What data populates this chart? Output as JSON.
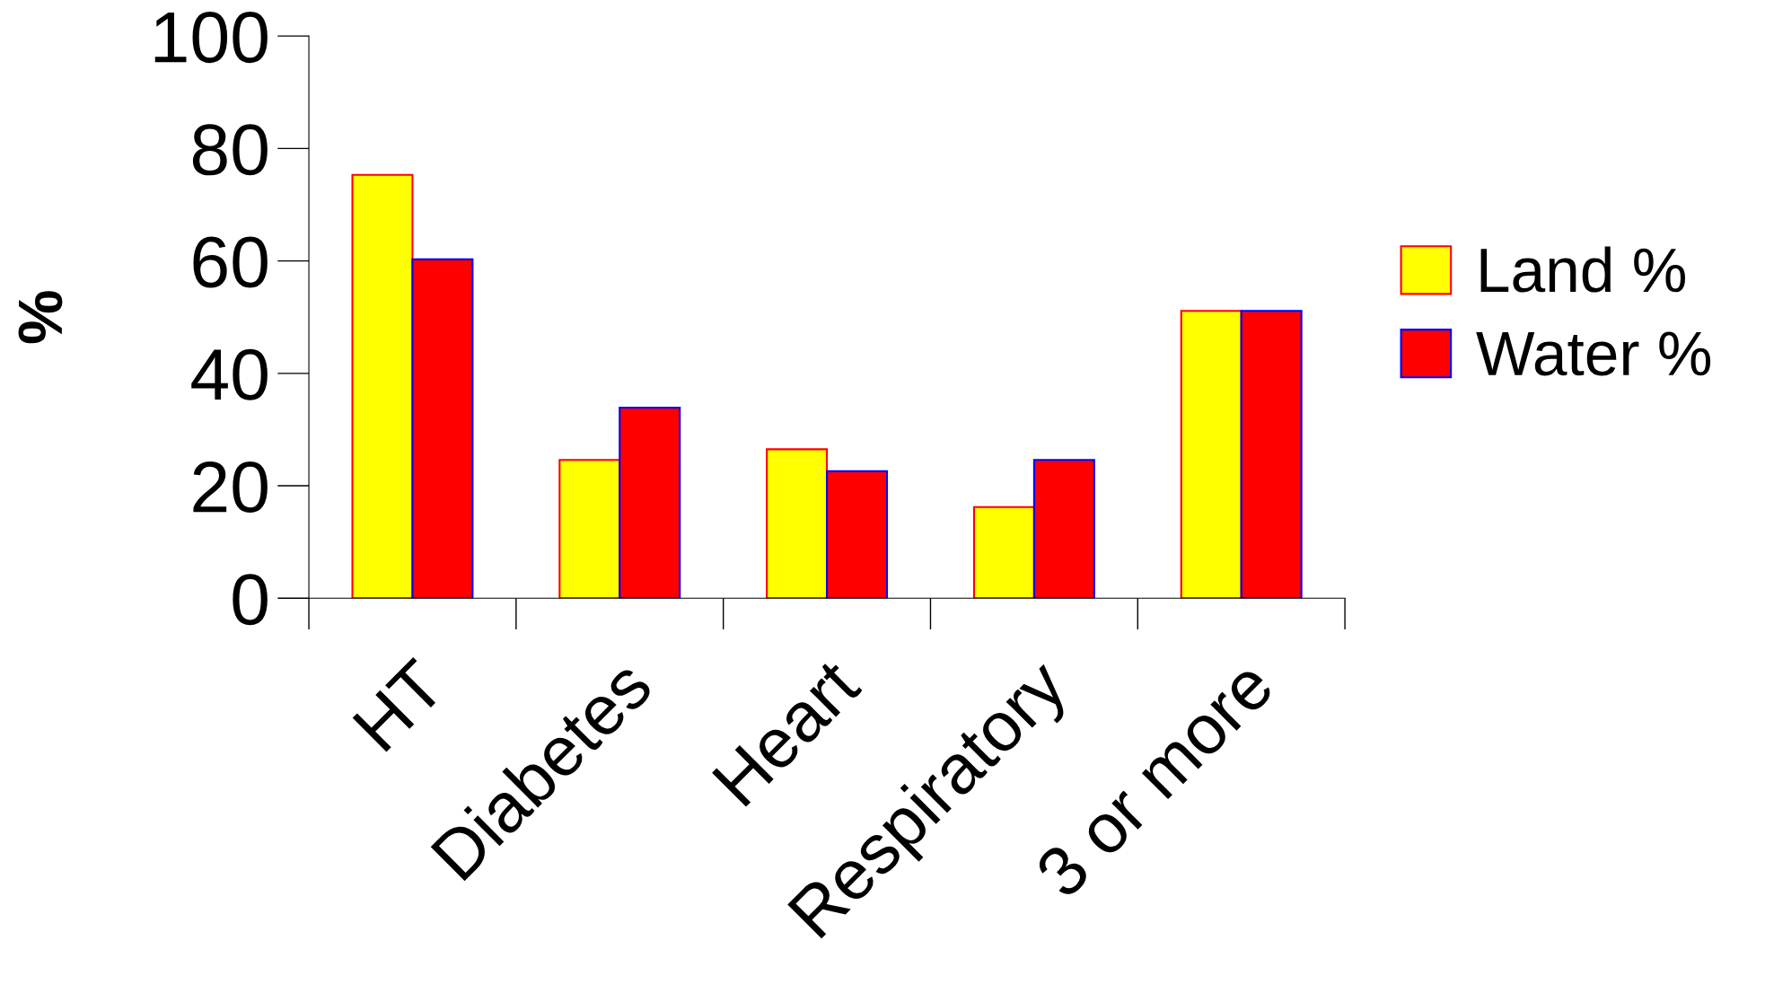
{
  "chart_data": {
    "type": "bar",
    "ylabel": "%",
    "categories": [
      "HT",
      "Diabetes",
      "Heart",
      "Respiratory",
      "3 or more"
    ],
    "series": [
      {
        "name": "Land %",
        "color": "#ffff00",
        "values": [
          75.3,
          24.6,
          26.5,
          16.2,
          51.1
        ]
      },
      {
        "name": "Water %",
        "color": "#ff0000",
        "values": [
          60.3,
          33.9,
          22.6,
          24.6,
          51.1
        ]
      }
    ],
    "ylim": [
      0,
      100
    ],
    "yticks": [
      0,
      20,
      40,
      60,
      80,
      100
    ],
    "grid": false,
    "legend": "right"
  }
}
